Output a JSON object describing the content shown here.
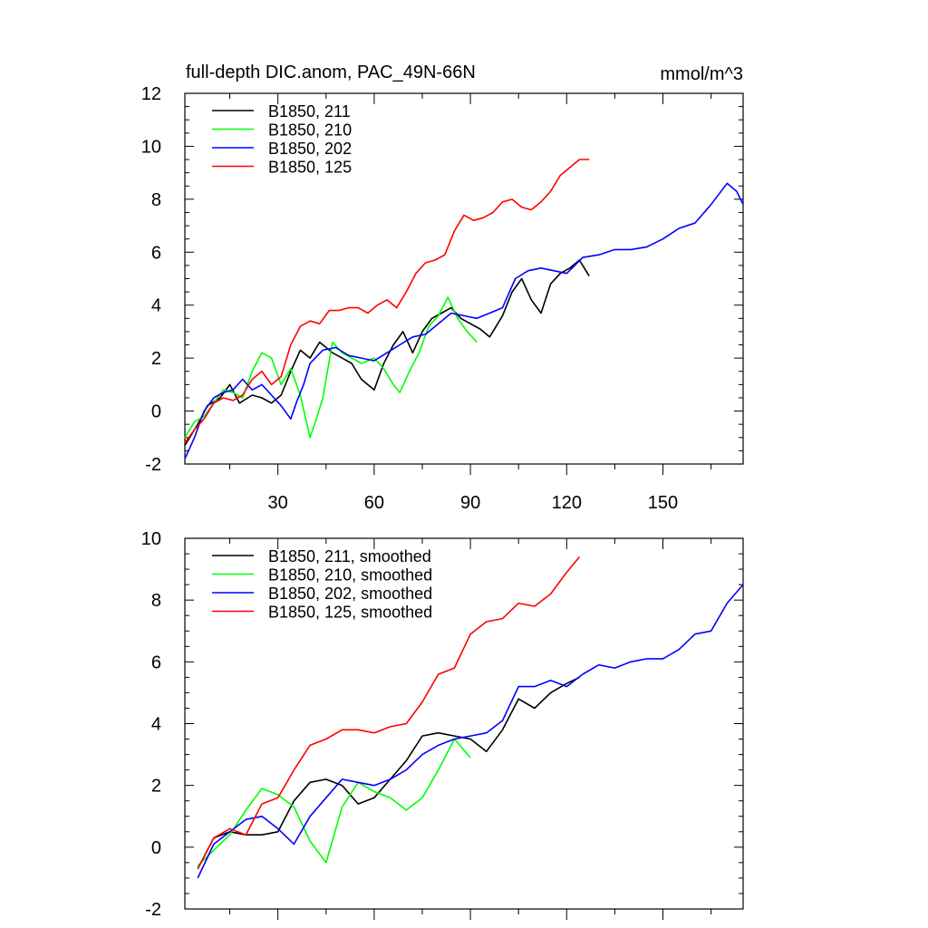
{
  "chart_data": [
    {
      "type": "line",
      "title": "full-depth DIC.anom, PAC_49N-66N",
      "units": "mmol/m^3",
      "xlim": [
        1,
        175
      ],
      "ylim": [
        -2,
        12
      ],
      "xticks": [
        30,
        60,
        90,
        120,
        150
      ],
      "yticks": [
        -2,
        0,
        2,
        4,
        6,
        8,
        10,
        12
      ],
      "legend": "top-left",
      "series": [
        {
          "name": "B1850, 211",
          "color": "#000000",
          "x": [
            1,
            5,
            8,
            12,
            15,
            18,
            22,
            25,
            28,
            31,
            34,
            37,
            40,
            43,
            47,
            50,
            53,
            56,
            60,
            63,
            66,
            69,
            72,
            75,
            78,
            81,
            84,
            87,
            90,
            93,
            96,
            100,
            103,
            106,
            109,
            112,
            115,
            118,
            121,
            124,
            127
          ],
          "y": [
            -1.3,
            -0.5,
            0.2,
            0.5,
            1.0,
            0.3,
            0.6,
            0.5,
            0.3,
            0.6,
            1.5,
            2.3,
            2.0,
            2.6,
            2.2,
            2.0,
            1.8,
            1.2,
            0.8,
            1.8,
            2.5,
            3.0,
            2.2,
            3.0,
            3.5,
            3.7,
            3.9,
            3.5,
            3.3,
            3.1,
            2.8,
            3.6,
            4.5,
            5.0,
            4.2,
            3.7,
            4.8,
            5.2,
            5.4,
            5.7,
            5.1
          ]
        },
        {
          "name": "B1850, 210",
          "color": "#00ff00",
          "x": [
            1,
            4,
            7,
            10,
            13,
            16,
            19,
            22,
            25,
            28,
            31,
            34,
            37,
            40,
            42,
            44,
            47,
            50,
            53,
            56,
            60,
            63,
            66,
            68,
            71,
            74,
            77,
            80,
            83,
            86,
            89,
            92
          ],
          "y": [
            -1.0,
            -0.4,
            -0.2,
            0.3,
            0.8,
            0.7,
            0.5,
            1.5,
            2.2,
            2.0,
            1.0,
            1.6,
            0.6,
            -1.0,
            -0.3,
            0.5,
            2.6,
            2.2,
            2.0,
            1.8,
            2.0,
            1.6,
            1.0,
            0.7,
            1.5,
            2.2,
            3.2,
            3.6,
            4.3,
            3.5,
            3.0,
            2.6
          ]
        },
        {
          "name": "B1850, 202",
          "color": "#0000ff",
          "x": [
            1,
            4,
            7,
            10,
            13,
            16,
            19,
            22,
            25,
            28,
            31,
            34,
            36,
            38,
            40,
            44,
            48,
            52,
            56,
            60,
            64,
            68,
            72,
            76,
            80,
            84,
            88,
            92,
            96,
            100,
            104,
            108,
            112,
            116,
            120,
            125,
            130,
            135,
            140,
            145,
            150,
            155,
            160,
            165,
            170,
            173,
            175
          ],
          "y": [
            -1.8,
            -1.0,
            0.0,
            0.5,
            0.7,
            0.8,
            1.2,
            0.8,
            1.0,
            0.6,
            0.2,
            -0.3,
            0.4,
            1.0,
            1.8,
            2.3,
            2.4,
            2.1,
            2.0,
            1.9,
            2.2,
            2.5,
            2.8,
            2.9,
            3.3,
            3.7,
            3.6,
            3.5,
            3.7,
            3.9,
            5.0,
            5.3,
            5.4,
            5.3,
            5.2,
            5.8,
            5.9,
            6.1,
            6.1,
            6.2,
            6.5,
            6.9,
            7.1,
            7.8,
            8.6,
            8.3,
            7.8
          ]
        },
        {
          "name": "B1850, 125",
          "color": "#ff0000",
          "x": [
            1,
            4,
            7,
            10,
            13,
            16,
            19,
            22,
            25,
            28,
            31,
            34,
            37,
            40,
            43,
            46,
            49,
            52,
            55,
            58,
            61,
            64,
            67,
            70,
            73,
            76,
            79,
            82,
            85,
            88,
            91,
            94,
            97,
            100,
            103,
            106,
            109,
            112,
            115,
            118,
            121,
            124,
            127
          ],
          "y": [
            -1.2,
            -0.7,
            -0.3,
            0.3,
            0.5,
            0.4,
            0.6,
            1.2,
            1.5,
            1.0,
            1.3,
            2.5,
            3.2,
            3.4,
            3.3,
            3.8,
            3.8,
            3.9,
            3.9,
            3.7,
            4.0,
            4.2,
            3.9,
            4.5,
            5.2,
            5.6,
            5.7,
            5.9,
            6.8,
            7.4,
            7.2,
            7.3,
            7.5,
            7.9,
            8.0,
            7.7,
            7.6,
            7.9,
            8.3,
            8.9,
            9.2,
            9.5,
            9.5
          ]
        }
      ]
    },
    {
      "type": "line",
      "title": "",
      "xlim": [
        1,
        175
      ],
      "ylim": [
        -2,
        10
      ],
      "yticks": [
        -2,
        0,
        2,
        4,
        6,
        8,
        10
      ],
      "legend": "top-left",
      "series": [
        {
          "name": "B1850, 211, smoothed",
          "color": "#000000",
          "x": [
            5,
            10,
            15,
            20,
            25,
            30,
            35,
            40,
            45,
            50,
            55,
            60,
            65,
            70,
            75,
            80,
            85,
            90,
            95,
            100,
            105,
            110,
            115,
            120,
            124
          ],
          "y": [
            -0.7,
            0.3,
            0.5,
            0.4,
            0.4,
            0.5,
            1.5,
            2.1,
            2.2,
            2.0,
            1.4,
            1.6,
            2.2,
            2.8,
            3.6,
            3.7,
            3.6,
            3.5,
            3.1,
            3.8,
            4.8,
            4.5,
            5.0,
            5.3,
            5.5
          ]
        },
        {
          "name": "B1850, 210, smoothed",
          "color": "#00ff00",
          "x": [
            5,
            10,
            15,
            20,
            25,
            30,
            35,
            40,
            45,
            50,
            55,
            60,
            65,
            70,
            75,
            80,
            85,
            90
          ],
          "y": [
            -0.6,
            -0.1,
            0.4,
            1.2,
            1.9,
            1.7,
            1.3,
            0.2,
            -0.5,
            1.3,
            2.1,
            1.8,
            1.6,
            1.2,
            1.6,
            2.5,
            3.5,
            2.9
          ]
        },
        {
          "name": "B1850, 202, smoothed",
          "color": "#0000ff",
          "x": [
            5,
            10,
            15,
            20,
            25,
            30,
            35,
            40,
            45,
            50,
            55,
            60,
            65,
            70,
            75,
            80,
            85,
            90,
            95,
            100,
            105,
            110,
            115,
            120,
            125,
            130,
            135,
            140,
            145,
            150,
            155,
            160,
            165,
            170,
            175
          ],
          "y": [
            -1.0,
            0.1,
            0.5,
            0.9,
            1.0,
            0.6,
            0.1,
            1.0,
            1.6,
            2.2,
            2.1,
            2.0,
            2.2,
            2.5,
            3.0,
            3.3,
            3.5,
            3.6,
            3.7,
            4.1,
            5.2,
            5.2,
            5.4,
            5.2,
            5.6,
            5.9,
            5.8,
            6.0,
            6.1,
            6.1,
            6.4,
            6.9,
            7.0,
            7.9,
            8.5
          ]
        },
        {
          "name": "B1850, 125, smoothed",
          "color": "#ff0000",
          "x": [
            5,
            10,
            15,
            20,
            25,
            30,
            35,
            40,
            45,
            50,
            55,
            60,
            65,
            70,
            75,
            80,
            85,
            90,
            95,
            100,
            105,
            110,
            115,
            120,
            124
          ],
          "y": [
            -0.7,
            0.3,
            0.6,
            0.4,
            1.4,
            1.6,
            2.5,
            3.3,
            3.5,
            3.8,
            3.8,
            3.7,
            3.9,
            4.0,
            4.7,
            5.6,
            5.8,
            6.9,
            7.3,
            7.4,
            7.9,
            7.8,
            8.2,
            8.9,
            9.4
          ]
        }
      ]
    }
  ]
}
